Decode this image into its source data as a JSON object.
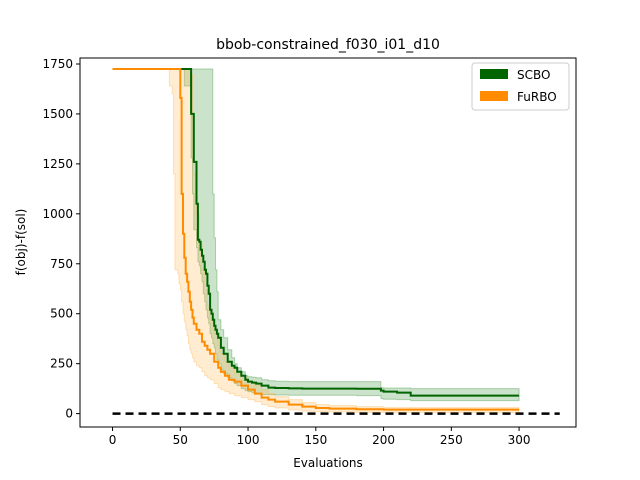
{
  "chart_data": {
    "type": "line",
    "title": "bbob-constrained_f030_i01_d10",
    "xlabel": "Evaluations",
    "ylabel": "f(obj)-f(sol)",
    "xlim": [
      -24,
      342
    ],
    "ylim": [
      -67,
      1780
    ],
    "xticks": [
      0,
      50,
      100,
      150,
      200,
      250,
      300
    ],
    "yticks": [
      0,
      250,
      500,
      750,
      1000,
      1250,
      1500,
      1750
    ],
    "xtick_labels": [
      "0",
      "50",
      "100",
      "150",
      "200",
      "250",
      "300"
    ],
    "ytick_labels": [
      "0",
      "250",
      "500",
      "750",
      "1000",
      "1250",
      "1500",
      "1750"
    ],
    "grid": false,
    "legend_position": "top-right",
    "reference_line": {
      "y": 0,
      "x_range": [
        0,
        330
      ],
      "style": "dashed",
      "color": "#000000"
    },
    "series": [
      {
        "name": "SCBO",
        "color": "#006400",
        "band_color": "#2e8b2e",
        "x": [
          0,
          40,
          50,
          53,
          55,
          57,
          58,
          59,
          60,
          61,
          62,
          63,
          64,
          65,
          66,
          67,
          68,
          69,
          70,
          71,
          72,
          73,
          74,
          75,
          76,
          77,
          78,
          80,
          82,
          85,
          88,
          90,
          92,
          95,
          98,
          100,
          103,
          106,
          110,
          115,
          120,
          130,
          140,
          150,
          160,
          170,
          180,
          190,
          198,
          200,
          210,
          220,
          230,
          250,
          270,
          290,
          300
        ],
        "y": [
          1725,
          1725,
          1725,
          1725,
          1725,
          1725,
          1500,
          1500,
          1260,
          1260,
          1050,
          870,
          860,
          820,
          790,
          760,
          720,
          700,
          640,
          600,
          520,
          500,
          470,
          440,
          420,
          400,
          380,
          330,
          300,
          260,
          240,
          230,
          210,
          190,
          170,
          160,
          155,
          150,
          140,
          130,
          128,
          126,
          125,
          125,
          125,
          125,
          124,
          124,
          115,
          110,
          105,
          90,
          90,
          90,
          90,
          90,
          90
        ],
        "lower": [
          1725,
          1725,
          1725,
          1640,
          1640,
          1640,
          1280,
          1100,
          920,
          920,
          830,
          760,
          740,
          700,
          660,
          600,
          560,
          520,
          480,
          450,
          400,
          380,
          350,
          330,
          300,
          270,
          250,
          220,
          200,
          180,
          165,
          150,
          140,
          125,
          115,
          110,
          105,
          100,
          95,
          95,
          93,
          92,
          92,
          92,
          92,
          92,
          90,
          90,
          75,
          72,
          70,
          65,
          65,
          65,
          65,
          65,
          65
        ],
        "upper": [
          1725,
          1725,
          1725,
          1725,
          1725,
          1725,
          1725,
          1725,
          1725,
          1725,
          1725,
          1725,
          1725,
          1725,
          1725,
          1725,
          1725,
          1725,
          1725,
          1725,
          1725,
          1725,
          1100,
          880,
          720,
          610,
          470,
          420,
          380,
          320,
          280,
          250,
          230,
          210,
          190,
          185,
          182,
          180,
          170,
          165,
          162,
          160,
          160,
          160,
          160,
          160,
          160,
          160,
          130,
          128,
          128,
          125,
          125,
          125,
          125,
          125,
          120
        ]
      },
      {
        "name": "FuRBO",
        "color": "#ff8c00",
        "band_color": "#ffb347",
        "x": [
          0,
          35,
          40,
          42,
          44,
          45,
          46,
          47,
          48,
          49,
          50,
          51,
          52,
          53,
          54,
          55,
          56,
          57,
          58,
          59,
          60,
          62,
          64,
          66,
          68,
          70,
          72,
          75,
          78,
          80,
          83,
          86,
          90,
          95,
          100,
          105,
          110,
          115,
          120,
          130,
          140,
          150,
          160,
          180,
          200,
          230,
          260,
          280,
          300
        ],
        "y": [
          1725,
          1725,
          1725,
          1725,
          1725,
          1725,
          1725,
          1725,
          1725,
          1725,
          1580,
          1100,
          900,
          780,
          700,
          660,
          610,
          560,
          520,
          480,
          450,
          420,
          400,
          360,
          340,
          320,
          300,
          260,
          230,
          210,
          190,
          170,
          160,
          140,
          120,
          100,
          80,
          70,
          60,
          45,
          35,
          28,
          25,
          22,
          20,
          20,
          20,
          20,
          20
        ],
        "lower": [
          1725,
          1725,
          1725,
          1640,
          1600,
          1200,
          720,
          720,
          700,
          650,
          620,
          560,
          500,
          460,
          420,
          390,
          350,
          320,
          300,
          280,
          260,
          240,
          230,
          210,
          190,
          180,
          170,
          150,
          130,
          120,
          110,
          100,
          90,
          80,
          70,
          60,
          45,
          35,
          28,
          18,
          12,
          10,
          8,
          6,
          5,
          5,
          5,
          5,
          5
        ],
        "upper": [
          1725,
          1725,
          1725,
          1725,
          1725,
          1725,
          1725,
          1725,
          1725,
          1725,
          1725,
          1725,
          1725,
          1725,
          1725,
          1725,
          1725,
          1725,
          1700,
          1500,
          1200,
          1000,
          850,
          720,
          620,
          540,
          470,
          400,
          340,
          300,
          260,
          230,
          200,
          180,
          160,
          140,
          120,
          100,
          85,
          70,
          55,
          45,
          40,
          35,
          30,
          30,
          30,
          30,
          30
        ]
      }
    ]
  }
}
